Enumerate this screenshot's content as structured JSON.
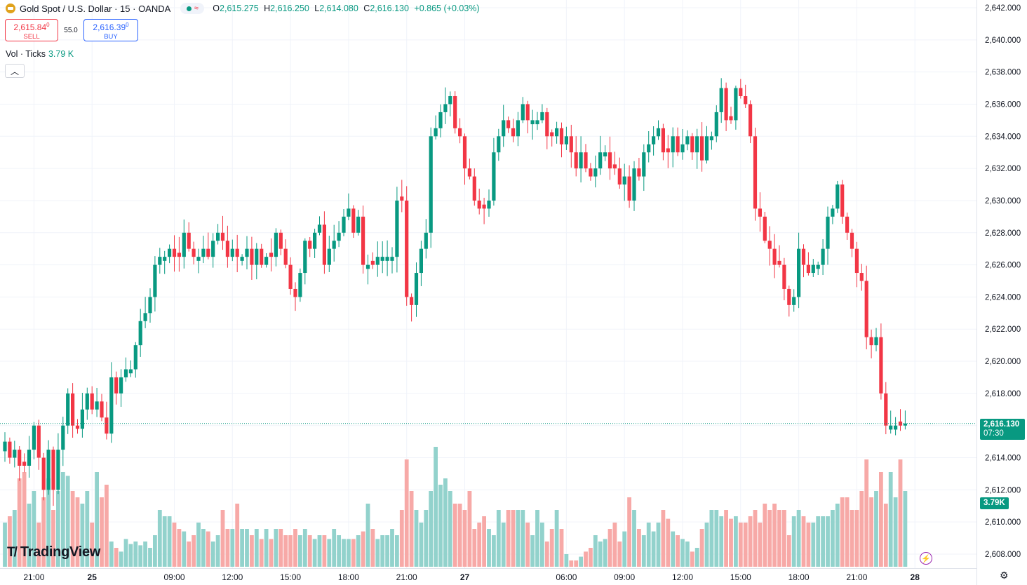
{
  "header": {
    "symbol_title": "Gold Spot / U.S. Dollar · 15 · OANDA",
    "ohlc": {
      "o_label": "O",
      "o": "2,615.275",
      "h_label": "H",
      "h": "2,616.250",
      "l_label": "L",
      "l": "2,614.080",
      "c_label": "C",
      "c": "2,616.130",
      "change": "+0.865 (+0.03%)"
    }
  },
  "trade": {
    "sell_price": "2,615.84",
    "sell_price_sup": "0",
    "sell_label": "SELL",
    "spread": "55.0",
    "buy_price": "2,616.39",
    "buy_price_sup": "0",
    "buy_label": "BUY"
  },
  "volume_legend": {
    "label": "Vol · Ticks",
    "value": "3.79 K"
  },
  "badges": {
    "last_price": "2,616.130",
    "countdown": "07:30",
    "volume": "3.79K"
  },
  "branding": {
    "logo_text": "TradingView"
  },
  "colors": {
    "up": "#089981",
    "down": "#f23645",
    "up_volume": "#92d2cc",
    "down_volume": "#f7a9a7",
    "grid": "#f0f3fa",
    "text": "#131722"
  },
  "chart_data": {
    "type": "candlestick",
    "interval": "15m",
    "last_price": 2616.13,
    "yaxis": {
      "ticks": [
        2608,
        2610,
        2612,
        2614,
        2616,
        2618,
        2620,
        2622,
        2624,
        2626,
        2628,
        2630,
        2632,
        2634,
        2636,
        2638,
        2640,
        2642
      ],
      "tick_labels": [
        "2,608.000",
        "2,610.000",
        "2,612.000",
        "2,614.000",
        "2,616.000",
        "2,618.000",
        "2,620.000",
        "2,622.000",
        "2,624.000",
        "2,626.000",
        "2,628.000",
        "2,630.000",
        "2,632.000",
        "2,634.000",
        "2,636.000",
        "2,638.000",
        "2,640.000",
        "2,642.000"
      ],
      "range": [
        2607.4,
        2642.5
      ]
    },
    "xaxis": {
      "labels": [
        {
          "text": "21:00",
          "index": 6,
          "bold": false
        },
        {
          "text": "25",
          "index": 18,
          "bold": true
        },
        {
          "text": "09:00",
          "index": 35,
          "bold": false
        },
        {
          "text": "12:00",
          "index": 47,
          "bold": false
        },
        {
          "text": "15:00",
          "index": 59,
          "bold": false
        },
        {
          "text": "18:00",
          "index": 71,
          "bold": false
        },
        {
          "text": "21:00",
          "index": 83,
          "bold": false
        },
        {
          "text": "27",
          "index": 95,
          "bold": true
        },
        {
          "text": "06:00",
          "index": 116,
          "bold": false
        },
        {
          "text": "09:00",
          "index": 128,
          "bold": false
        },
        {
          "text": "12:00",
          "index": 140,
          "bold": false
        },
        {
          "text": "15:00",
          "index": 152,
          "bold": false
        },
        {
          "text": "18:00",
          "index": 164,
          "bold": false
        },
        {
          "text": "21:00",
          "index": 176,
          "bold": false
        },
        {
          "text": "28",
          "index": 188,
          "bold": true
        }
      ]
    },
    "closes": [
      2615.0,
      2614.0,
      2614.5,
      2613.5,
      2613.5,
      2614.5,
      2616.0,
      2614.0,
      2612.0,
      2614.5,
      2612.0,
      2614.5,
      2616.0,
      2618.0,
      2616.0,
      2615.8,
      2617.0,
      2618.0,
      2617.0,
      2617.5,
      2616.5,
      2615.5,
      2619.0,
      2618.0,
      2619.0,
      2619.5,
      2619.5,
      2621.0,
      2622.5,
      2623.0,
      2624.0,
      2626.0,
      2626.5,
      2626.5,
      2627.0,
      2626.5,
      2626.5,
      2628.0,
      2627.0,
      2626.5,
      2626.5,
      2627.0,
      2626.5,
      2627.5,
      2628.0,
      2627.5,
      2626.5,
      2627.0,
      2626.5,
      2626.5,
      2627.0,
      2626.0,
      2627.0,
      2626.0,
      2626.5,
      2626.5,
      2628.0,
      2627.0,
      2626.0,
      2624.5,
      2624.0,
      2625.5,
      2627.5,
      2627.0,
      2628.0,
      2628.5,
      2626.0,
      2627.0,
      2627.5,
      2628.0,
      2629.0,
      2629.5,
      2628.0,
      2629.0,
      2626.0,
      2626.0,
      2626.0,
      2626.5,
      2626.5,
      2626.5,
      2626.5,
      2630.0,
      2630.0,
      2624.0,
      2623.5,
      2625.5,
      2627.0,
      2628.0,
      2634.0,
      2634.5,
      2635.5,
      2636.0,
      2636.5,
      2634.5,
      2634.0,
      2632.0,
      2631.5,
      2630.0,
      2629.5,
      2629.5,
      2630.0,
      2633.0,
      2634.0,
      2635.0,
      2634.5,
      2634.0,
      2635.0,
      2636.0,
      2635.0,
      2635.0,
      2635.0,
      2635.5,
      2634.0,
      2634.0,
      2634.5,
      2633.5,
      2634.0,
      2633.0,
      2632.0,
      2633.0,
      2632.0,
      2631.5,
      2632.0,
      2633.0,
      2633.0,
      2632.0,
      2632.0,
      2631.0,
      2631.5,
      2630.0,
      2632.0,
      2631.5,
      2633.0,
      2633.5,
      2634.0,
      2634.5,
      2633.0,
      2633.0,
      2634.0,
      2633.0,
      2633.5,
      2634.0,
      2633.0,
      2634.0,
      2632.5,
      2634.0,
      2634.0,
      2635.5,
      2637.0,
      2635.0,
      2635.0,
      2637.0,
      2636.5,
      2636.0,
      2634.0,
      2629.5,
      2629.0,
      2627.5,
      2627.0,
      2626.0,
      2626.0,
      2624.5,
      2623.5,
      2624.0,
      2627.0,
      2626.0,
      2625.5,
      2626.0,
      2626.0,
      2627.0,
      2629.0,
      2629.5,
      2631.0,
      2629.0,
      2628.0,
      2627.0,
      2625.5,
      2625.0,
      2621.5,
      2621.0,
      2621.5,
      2618.0,
      2616.0,
      2616.0,
      2616.0,
      2616.0,
      2616.13
    ],
    "volume_relative": [
      0.35,
      0.4,
      0.45,
      0.7,
      0.75,
      0.5,
      0.6,
      0.35,
      0.55,
      0.7,
      0.45,
      0.6,
      0.75,
      0.72,
      0.6,
      0.55,
      0.5,
      0.6,
      0.35,
      0.75,
      0.55,
      0.65,
      0.2,
      0.15,
      0.12,
      0.22,
      0.18,
      0.2,
      0.17,
      0.2,
      0.15,
      0.25,
      0.45,
      0.4,
      0.4,
      0.35,
      0.3,
      0.28,
      0.2,
      0.25,
      0.35,
      0.3,
      0.28,
      0.2,
      0.25,
      0.45,
      0.3,
      0.3,
      0.5,
      0.3,
      0.3,
      0.25,
      0.3,
      0.22,
      0.3,
      0.22,
      0.3,
      0.3,
      0.25,
      0.25,
      0.3,
      0.25,
      0.3,
      0.25,
      0.22,
      0.25,
      0.25,
      0.22,
      0.3,
      0.25,
      0.22,
      0.22,
      0.22,
      0.25,
      0.28,
      0.5,
      0.3,
      0.22,
      0.25,
      0.25,
      0.3,
      0.25,
      0.45,
      0.85,
      0.6,
      0.45,
      0.35,
      0.45,
      0.6,
      0.95,
      0.65,
      0.7,
      0.6,
      0.5,
      0.5,
      0.45,
      0.6,
      0.3,
      0.35,
      0.4,
      0.3,
      0.25,
      0.45,
      0.35,
      0.45,
      0.45,
      0.45,
      0.45,
      0.35,
      0.25,
      0.45,
      0.35,
      0.2,
      0.3,
      0.45,
      0.3,
      0.1,
      0.05,
      0.05,
      0.08,
      0.12,
      0.15,
      0.25,
      0.2,
      0.22,
      0.3,
      0.35,
      0.2,
      0.28,
      0.55,
      0.45,
      0.3,
      0.25,
      0.35,
      0.28,
      0.35,
      0.45,
      0.38,
      0.28,
      0.25,
      0.22,
      0.2,
      0.12,
      0.15,
      0.3,
      0.35,
      0.45,
      0.45,
      0.4,
      0.45,
      0.38,
      0.4,
      0.35,
      0.35,
      0.4,
      0.45,
      0.35,
      0.5,
      0.45,
      0.5,
      0.45,
      0.45,
      0.25,
      0.4,
      0.45,
      0.4,
      0.35,
      0.35,
      0.4,
      0.4,
      0.4,
      0.45,
      0.5,
      0.55,
      0.55,
      0.45,
      0.45,
      0.6,
      0.85,
      0.55,
      0.6,
      0.75,
      0.5,
      0.75,
      0.55,
      0.85,
      0.6
    ]
  }
}
